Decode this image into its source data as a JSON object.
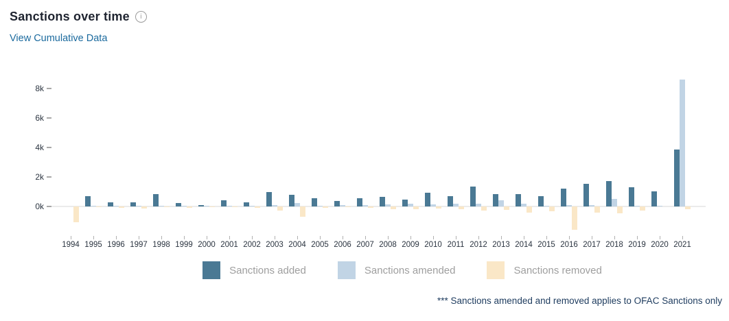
{
  "header": {
    "title": "Sanctions over time",
    "link_label": "View Cumulative Data"
  },
  "colors": {
    "added": "#4a7994",
    "amended": "#c1d4e5",
    "removed": "#fae7c7",
    "link": "#1b6a9e",
    "axis_line": "#ebebeb",
    "legend_text": "#9e9e9e",
    "footnote_text": "#1d3b5e"
  },
  "chart_data": {
    "type": "bar",
    "title": "Sanctions over time",
    "categories": [
      "1994",
      "1995",
      "1996",
      "1997",
      "1998",
      "1999",
      "2000",
      "2001",
      "2002",
      "2003",
      "2004",
      "2005",
      "2006",
      "2007",
      "2008",
      "2009",
      "2010",
      "2011",
      "2012",
      "2013",
      "2014",
      "2015",
      "2016",
      "2017",
      "2018",
      "2019",
      "2020",
      "2021"
    ],
    "series": [
      {
        "name": "Sanctions added",
        "color": "#4a7994",
        "values": [
          0,
          700,
          300,
          300,
          820,
          230,
          100,
          420,
          290,
          1000,
          800,
          550,
          350,
          550,
          650,
          450,
          930,
          700,
          1330,
          850,
          860,
          700,
          1220,
          1550,
          1700,
          1300,
          1020,
          3850
        ]
      },
      {
        "name": "Sanctions amended",
        "color": "#c1d4e5",
        "values": [
          0,
          40,
          30,
          40,
          60,
          50,
          30,
          20,
          30,
          110,
          240,
          60,
          100,
          80,
          140,
          170,
          160,
          200,
          170,
          400,
          180,
          40,
          110,
          70,
          500,
          30,
          40,
          8600
        ]
      },
      {
        "name": "Sanctions removed",
        "color": "#fae7c7",
        "values": [
          -1050,
          -60,
          -90,
          -120,
          -40,
          -70,
          -60,
          -30,
          -70,
          -260,
          -720,
          -90,
          -60,
          -80,
          -200,
          -190,
          -140,
          -190,
          -280,
          -240,
          -440,
          -310,
          -1580,
          -400,
          -450,
          -270,
          0,
          -200
        ]
      }
    ],
    "ytick_labels": [
      "0k",
      "2k",
      "4k",
      "6k",
      "8k"
    ],
    "ytick_values": [
      0,
      2000,
      4000,
      6000,
      8000
    ],
    "ylim": [
      -1700,
      8900
    ],
    "grid": "none",
    "legend_position": "bottom",
    "note": "*** Sanctions amended and removed applies to OFAC Sanctions only"
  }
}
